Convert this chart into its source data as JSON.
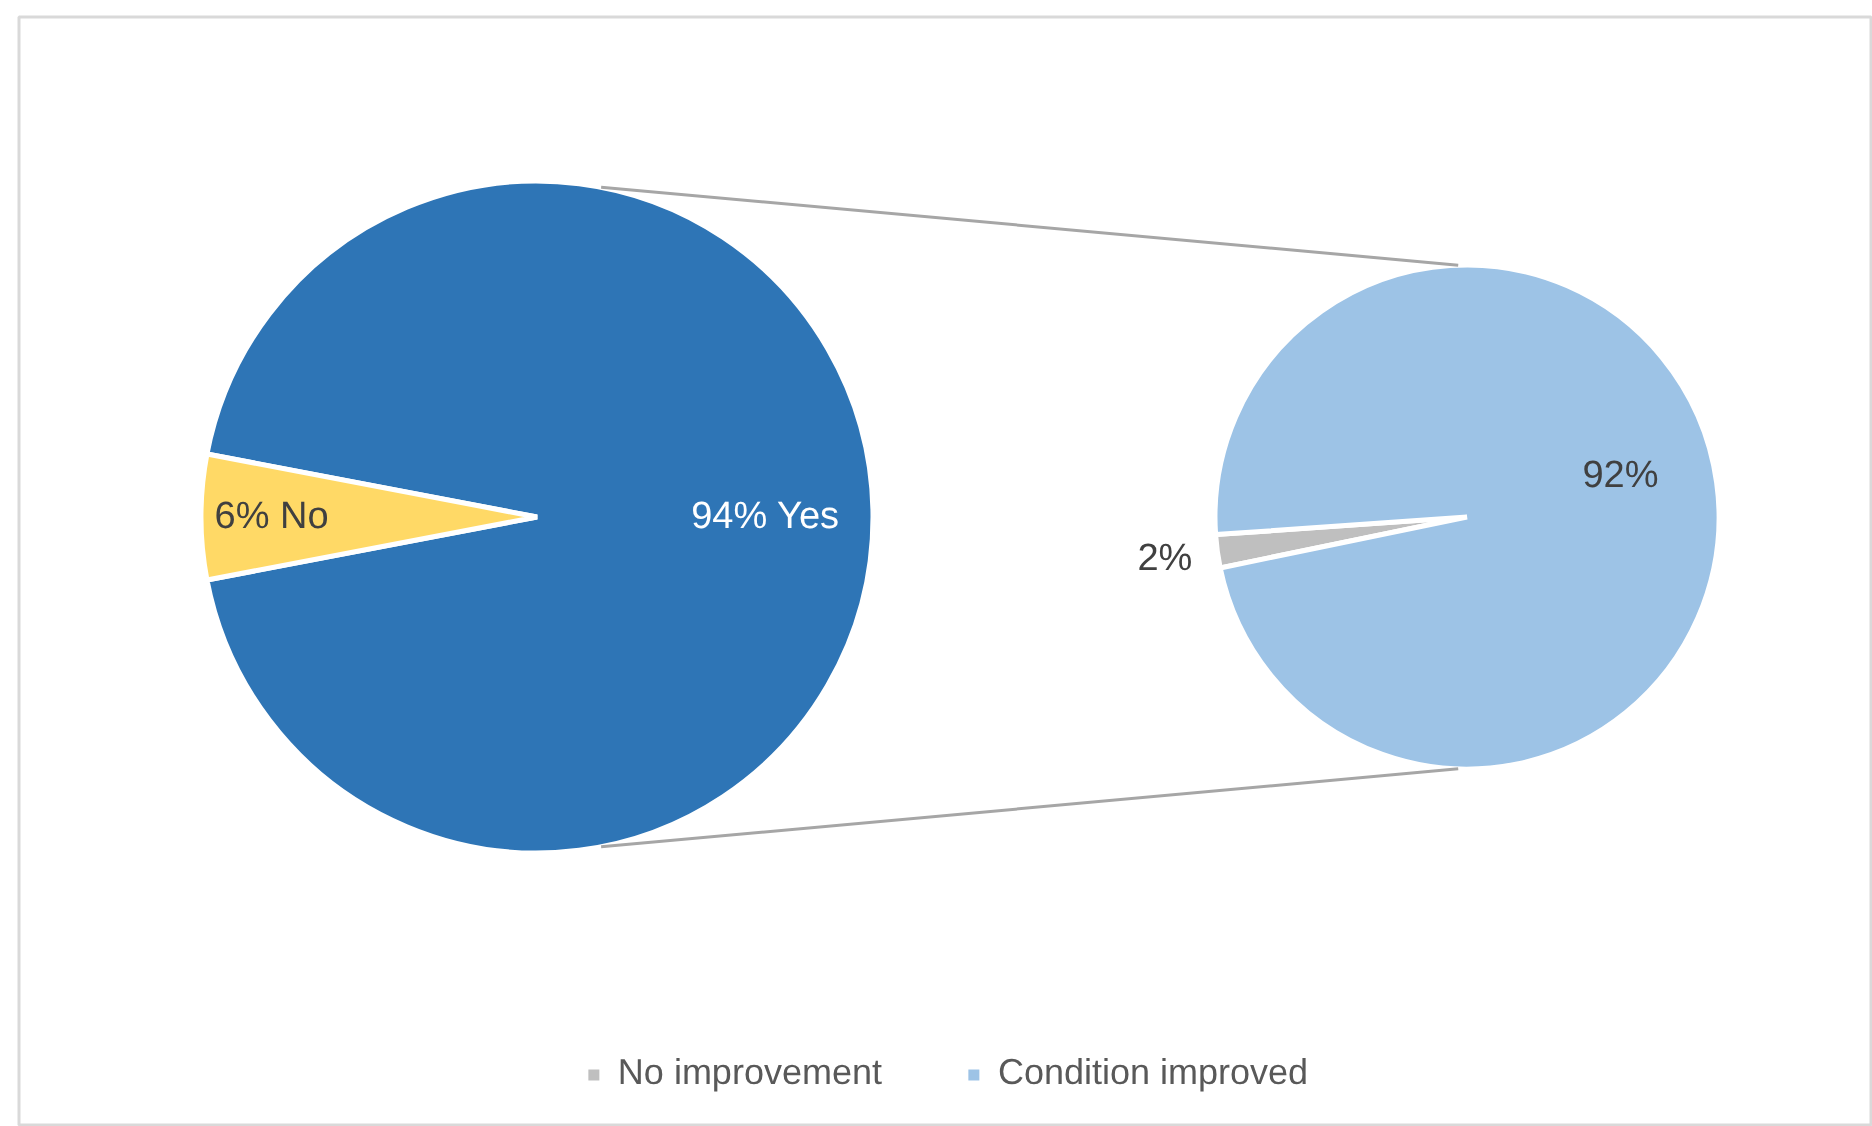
{
  "chart_data": [
    {
      "type": "pie",
      "categories": [
        "Yes",
        "No"
      ],
      "values": [
        94,
        6
      ],
      "colors": [
        "#2e75b6",
        "#ffd966"
      ],
      "value_labels": [
        "94%",
        "6%"
      ]
    },
    {
      "type": "pie",
      "categories": [
        "No improvement",
        "Condition improved"
      ],
      "values": [
        2,
        92
      ],
      "colors": [
        "#bfbfbf",
        "#9dc3e6"
      ],
      "value_labels": [
        "2%",
        "92%"
      ],
      "legend": "bottom"
    }
  ]
}
